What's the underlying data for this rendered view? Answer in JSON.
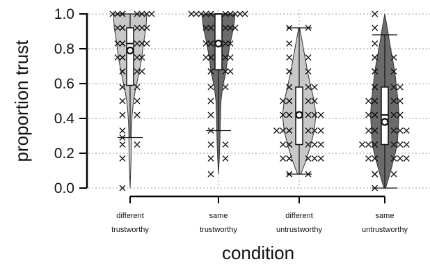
{
  "chart_data": {
    "type": "violin",
    "ylabel": "proportion trust",
    "xlabel": "condition",
    "ylim": [
      0,
      1
    ],
    "yticks": [
      "0.0",
      "0.2",
      "0.4",
      "0.6",
      "0.8",
      "1.0"
    ],
    "grid": true,
    "categories": [
      {
        "line1": "different",
        "line2": "trustworthy",
        "mean": 0.79,
        "median": 0.83,
        "q1": 0.59,
        "q3": 0.92,
        "whisker_low": 0.29,
        "whisker_high": 1.0,
        "color": "#c8c8c8"
      },
      {
        "line1": "same",
        "line2": "trustworthy",
        "mean": 0.83,
        "median": 1.0,
        "q1": 0.68,
        "q3": 1.0,
        "whisker_low": 0.33,
        "whisker_high": 1.0,
        "color": "#6b6b6b"
      },
      {
        "line1": "different",
        "line2": "untrustworthy",
        "mean": 0.42,
        "median": 0.42,
        "q1": 0.25,
        "q3": 0.58,
        "whisker_low": 0.08,
        "whisker_high": 0.92,
        "color": "#c8c8c8"
      },
      {
        "line1": "same",
        "line2": "untrustworthy",
        "mean": 0.38,
        "median": 0.42,
        "q1": 0.25,
        "q3": 0.58,
        "whisker_low": 0.0,
        "whisker_high": 0.88,
        "color": "#6b6b6b"
      }
    ],
    "violins": [
      [
        [
          0.0,
          0.0
        ],
        [
          0.08,
          0.03
        ],
        [
          0.17,
          0.06
        ],
        [
          0.25,
          0.07
        ],
        [
          0.33,
          0.08
        ],
        [
          0.42,
          0.12
        ],
        [
          0.5,
          0.2
        ],
        [
          0.58,
          0.35
        ],
        [
          0.67,
          0.55
        ],
        [
          0.75,
          0.7
        ],
        [
          0.83,
          0.8
        ],
        [
          0.92,
          0.95
        ],
        [
          1.0,
          1.0
        ]
      ],
      [
        [
          0.08,
          0.0
        ],
        [
          0.17,
          0.05
        ],
        [
          0.25,
          0.08
        ],
        [
          0.33,
          0.1
        ],
        [
          0.42,
          0.12
        ],
        [
          0.5,
          0.15
        ],
        [
          0.58,
          0.25
        ],
        [
          0.67,
          0.45
        ],
        [
          0.75,
          0.55
        ],
        [
          0.83,
          0.7
        ],
        [
          0.92,
          0.9
        ],
        [
          1.0,
          1.0
        ]
      ],
      [
        [
          0.08,
          0.1
        ],
        [
          0.17,
          0.45
        ],
        [
          0.25,
          0.7
        ],
        [
          0.33,
          0.9
        ],
        [
          0.42,
          1.0
        ],
        [
          0.5,
          0.9
        ],
        [
          0.58,
          0.7
        ],
        [
          0.67,
          0.5
        ],
        [
          0.75,
          0.35
        ],
        [
          0.83,
          0.2
        ],
        [
          0.92,
          0.03
        ]
      ],
      [
        [
          0.0,
          0.05
        ],
        [
          0.08,
          0.3
        ],
        [
          0.17,
          0.55
        ],
        [
          0.25,
          0.75
        ],
        [
          0.33,
          0.8
        ],
        [
          0.42,
          0.85
        ],
        [
          0.5,
          0.8
        ],
        [
          0.58,
          0.7
        ],
        [
          0.67,
          0.6
        ],
        [
          0.75,
          0.45
        ],
        [
          0.83,
          0.3
        ],
        [
          0.92,
          0.15
        ],
        [
          1.0,
          0.0
        ]
      ]
    ],
    "points": [
      [
        0.0,
        0.17,
        0.25,
        0.25,
        0.29,
        0.33,
        0.42,
        0.42,
        0.5,
        0.5,
        0.58,
        0.58,
        0.58,
        0.67,
        0.67,
        0.67,
        0.67,
        0.75,
        0.75,
        0.75,
        0.75,
        0.75,
        0.83,
        0.83,
        0.83,
        0.83,
        0.83,
        0.83,
        0.92,
        0.92,
        0.92,
        0.92,
        0.92,
        0.92,
        1.0,
        1.0,
        1.0,
        1.0,
        1.0,
        1.0,
        1.0,
        1.0
      ],
      [
        0.08,
        0.17,
        0.17,
        0.25,
        0.25,
        0.33,
        0.42,
        0.5,
        0.58,
        0.58,
        0.67,
        0.67,
        0.67,
        0.67,
        0.75,
        0.75,
        0.75,
        0.75,
        0.75,
        0.83,
        0.83,
        0.83,
        0.83,
        0.83,
        0.92,
        0.92,
        0.92,
        0.92,
        0.92,
        0.92,
        1.0,
        1.0,
        1.0,
        1.0,
        1.0,
        1.0,
        1.0,
        1.0,
        1.0,
        1.0,
        1.0
      ],
      [
        0.08,
        0.08,
        0.08,
        0.17,
        0.17,
        0.17,
        0.17,
        0.17,
        0.17,
        0.25,
        0.25,
        0.25,
        0.25,
        0.25,
        0.25,
        0.33,
        0.33,
        0.33,
        0.33,
        0.33,
        0.33,
        0.33,
        0.42,
        0.42,
        0.42,
        0.42,
        0.42,
        0.42,
        0.5,
        0.5,
        0.5,
        0.5,
        0.5,
        0.58,
        0.58,
        0.58,
        0.58,
        0.67,
        0.67,
        0.67,
        0.75,
        0.75,
        0.83,
        0.92,
        0.92
      ],
      [
        0.0,
        0.08,
        0.08,
        0.08,
        0.17,
        0.17,
        0.17,
        0.17,
        0.17,
        0.17,
        0.25,
        0.25,
        0.25,
        0.25,
        0.25,
        0.25,
        0.25,
        0.33,
        0.33,
        0.33,
        0.33,
        0.33,
        0.33,
        0.42,
        0.42,
        0.42,
        0.42,
        0.42,
        0.5,
        0.5,
        0.5,
        0.5,
        0.5,
        0.58,
        0.58,
        0.58,
        0.58,
        0.67,
        0.67,
        0.67,
        0.75,
        0.75,
        0.75,
        0.83,
        0.92,
        1.0
      ]
    ]
  }
}
